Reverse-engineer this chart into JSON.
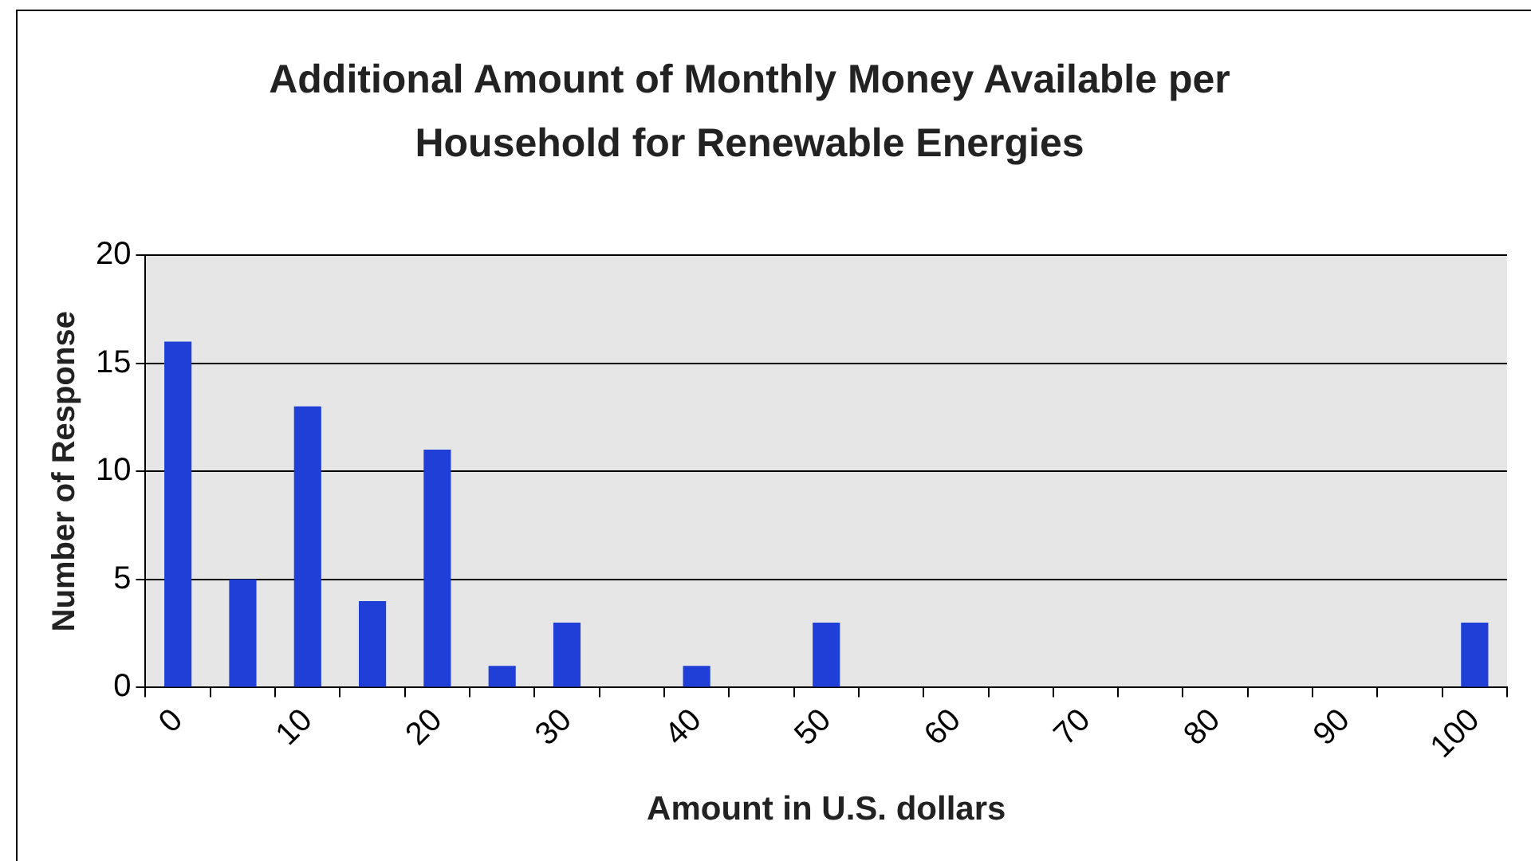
{
  "chart_data": {
    "type": "bar",
    "title": "Additional Amount of Monthly Money Available per Household for Renewable Energies",
    "xlabel": "Amount in U.S. dollars",
    "ylabel": "Number of Response",
    "categories": [
      "0",
      null,
      "10",
      null,
      "20",
      null,
      "30",
      null,
      "40",
      null,
      "50",
      null,
      "60",
      null,
      "70",
      null,
      "80",
      null,
      "90",
      null,
      "100"
    ],
    "values": [
      16,
      5,
      13,
      4,
      11,
      1,
      3,
      null,
      1,
      null,
      3,
      null,
      null,
      null,
      null,
      null,
      null,
      null,
      null,
      null,
      3
    ],
    "color": "#1f3fd6",
    "ylim": [
      0,
      20
    ],
    "yticks": [
      0,
      5,
      10,
      15,
      20
    ],
    "grid": "y",
    "legend": false
  }
}
